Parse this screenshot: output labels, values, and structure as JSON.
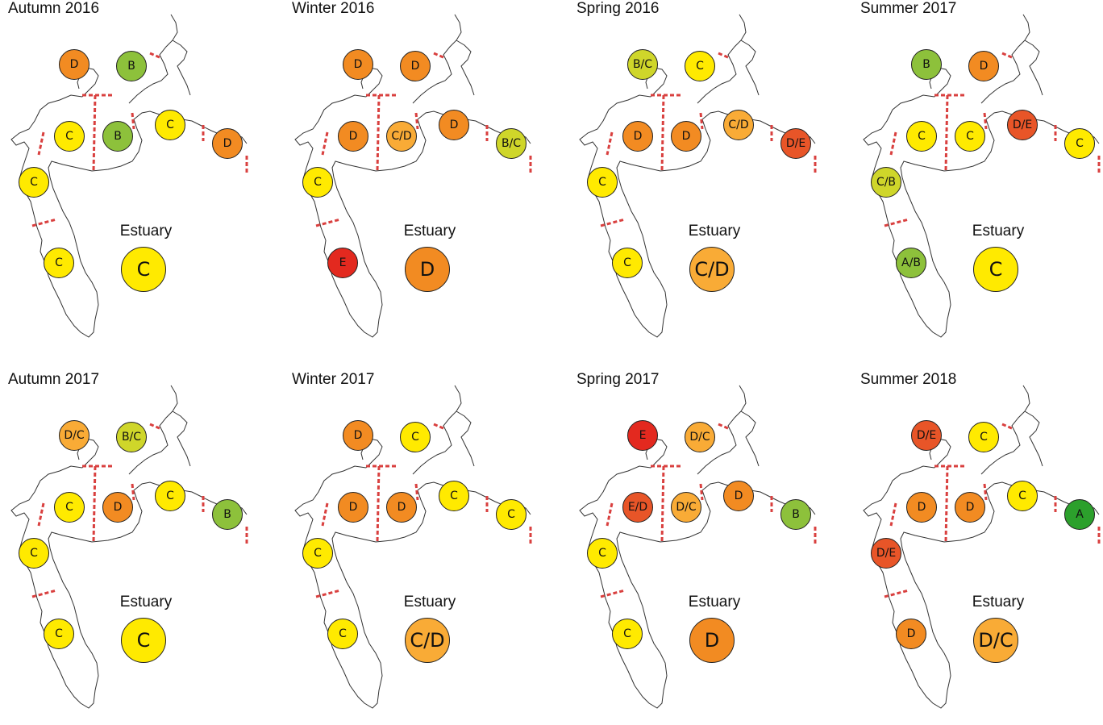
{
  "colors": {
    "A": "#2ca02c",
    "A/B": "#8dc13b",
    "B": "#8dc13b",
    "B/C": "#cfd62a",
    "C/B": "#cfd62a",
    "C": "#ffea00",
    "C/D": "#f9ab36",
    "D/C": "#f9ab36",
    "D": "#f28b22",
    "D/E": "#e85528",
    "E/D": "#e85528",
    "E": "#e3291f",
    "outline": "#222222",
    "boundary_dashes": "#d9403f",
    "coast": "#333333"
  },
  "panels": [
    {
      "title": "Autumn 2016",
      "estuary_label": "Estuary",
      "estuary_grade": "C",
      "grades": {
        "nw": "D",
        "ne": "B",
        "w": "C",
        "c": "B",
        "e": "C",
        "far_e": "D",
        "sw1": "C",
        "sw2": "C"
      }
    },
    {
      "title": "Winter 2016",
      "estuary_label": "Estuary",
      "estuary_grade": "D",
      "grades": {
        "nw": "D",
        "ne": "D",
        "w": "D",
        "c": "C/D",
        "e": "D",
        "far_e": "B/C",
        "sw1": "C",
        "sw2": "E"
      }
    },
    {
      "title": "Spring 2016",
      "estuary_label": "Estuary",
      "estuary_grade": "C/D",
      "grades": {
        "nw": "B/C",
        "ne": "C",
        "w": "D",
        "c": "D",
        "e": "C/D",
        "far_e": "D/E",
        "sw1": "C",
        "sw2": "C"
      }
    },
    {
      "title": "Summer 2017",
      "estuary_label": "Estuary",
      "estuary_grade": "C",
      "grades": {
        "nw": "B",
        "ne": "D",
        "w": "C",
        "c": "C",
        "e": "D/E",
        "far_e": "C",
        "sw1": "C/B",
        "sw2": "A/B"
      }
    },
    {
      "title": "Autumn 2017",
      "estuary_label": "Estuary",
      "estuary_grade": "C",
      "grades": {
        "nw": "D/C",
        "ne": "B/C",
        "w": "C",
        "c": "D",
        "e": "C",
        "far_e": "B",
        "sw1": "C",
        "sw2": "C"
      }
    },
    {
      "title": "Winter 2017",
      "estuary_label": "Estuary",
      "estuary_grade": "C/D",
      "grades": {
        "nw": "D",
        "ne": "C",
        "w": "D",
        "c": "D",
        "e": "C",
        "far_e": "C",
        "sw1": "C",
        "sw2": "C"
      }
    },
    {
      "title": "Spring 2017",
      "estuary_label": "Estuary",
      "estuary_grade": "D",
      "grades": {
        "nw": "E",
        "ne": "D/C",
        "w": "E/D",
        "c": "D/C",
        "e": "D",
        "far_e": "B",
        "sw1": "C",
        "sw2": "C"
      }
    },
    {
      "title": "Summer 2018",
      "estuary_label": "Estuary",
      "estuary_grade": "D/C",
      "grades": {
        "nw": "D/E",
        "ne": "C",
        "w": "D",
        "c": "D",
        "e": "C",
        "far_e": "A",
        "sw1": "D/E",
        "sw2": "D"
      }
    }
  ]
}
